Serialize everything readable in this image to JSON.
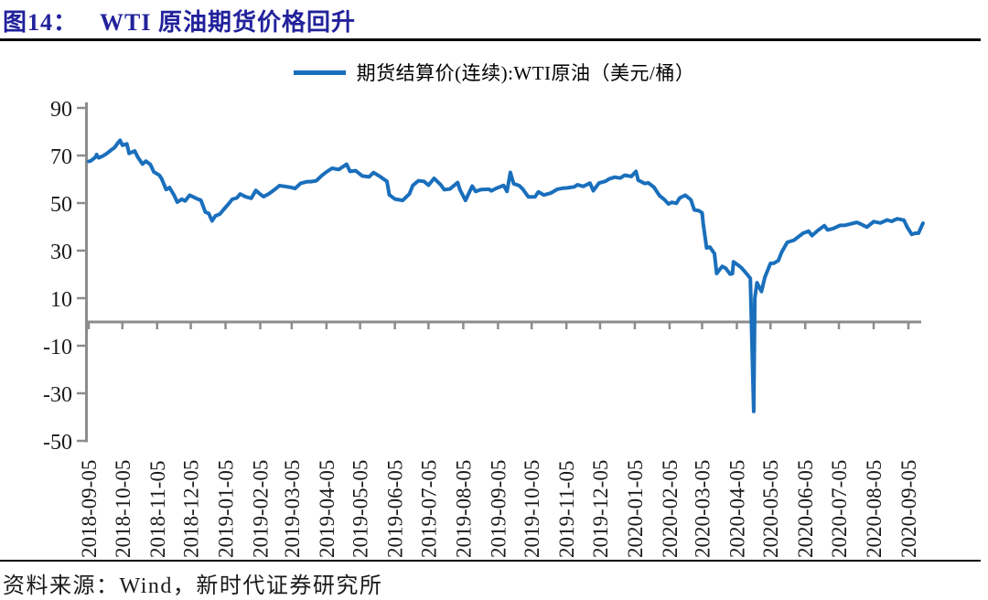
{
  "header": {
    "figure_label": "图14：",
    "title": "WTI 原油期货价格回升",
    "title_color": "#22229C"
  },
  "footer": {
    "source": "资料来源：Wind，新时代证券研究所"
  },
  "chart_data": {
    "type": "line",
    "title": "WTI 原油期货价格回升",
    "legend": [
      "期货结算价(连续):WTI原油（美元/桶）"
    ],
    "legend_position": "top-center",
    "grid": false,
    "ylabel": "美元/桶",
    "ylim": [
      -50,
      90
    ],
    "yticks": [
      90,
      70,
      50,
      30,
      10,
      -10,
      -30,
      -50
    ],
    "axis_color": "#8C8C8C",
    "tick_label_color": "#1a1a1a",
    "x_range": [
      "2018-09-05",
      "2020-09-05"
    ],
    "xtick_labels": [
      "2018-09-05",
      "2018-10-05",
      "2018-11-05",
      "2018-12-05",
      "2019-01-05",
      "2019-02-05",
      "2019-03-05",
      "2019-04-05",
      "2019-05-05",
      "2019-06-05",
      "2019-07-05",
      "2019-08-05",
      "2019-09-05",
      "2019-10-05",
      "2019-11-05",
      "2019-12-05",
      "2020-01-05",
      "2020-02-05",
      "2020-03-05",
      "2020-04-05",
      "2020-05-05",
      "2020-06-05",
      "2020-07-05",
      "2020-08-05",
      "2020-09-05"
    ],
    "series": [
      {
        "name": "期货结算价(连续):WTI原油（美元/桶）",
        "color": "#1A6FBC",
        "unit": "美元/桶",
        "points": [
          [
            "2018-09-05",
            67.5
          ],
          [
            "2018-09-07",
            67.8
          ],
          [
            "2018-09-11",
            69.3
          ],
          [
            "2018-09-12",
            70.4
          ],
          [
            "2018-09-14",
            69.0
          ],
          [
            "2018-09-18",
            69.9
          ],
          [
            "2018-09-21",
            70.8
          ],
          [
            "2018-09-25",
            72.3
          ],
          [
            "2018-09-28",
            73.3
          ],
          [
            "2018-10-01",
            75.3
          ],
          [
            "2018-10-03",
            76.4
          ],
          [
            "2018-10-05",
            74.3
          ],
          [
            "2018-10-09",
            74.9
          ],
          [
            "2018-10-11",
            70.9
          ],
          [
            "2018-10-16",
            71.9
          ],
          [
            "2018-10-19",
            69.1
          ],
          [
            "2018-10-23",
            66.4
          ],
          [
            "2018-10-26",
            67.6
          ],
          [
            "2018-10-30",
            66.2
          ],
          [
            "2018-11-02",
            63.1
          ],
          [
            "2018-11-07",
            61.7
          ],
          [
            "2018-11-09",
            60.2
          ],
          [
            "2018-11-13",
            55.7
          ],
          [
            "2018-11-16",
            56.5
          ],
          [
            "2018-11-20",
            53.4
          ],
          [
            "2018-11-23",
            50.4
          ],
          [
            "2018-11-27",
            51.6
          ],
          [
            "2018-11-30",
            50.9
          ],
          [
            "2018-12-04",
            53.3
          ],
          [
            "2018-12-07",
            52.6
          ],
          [
            "2018-12-11",
            51.7
          ],
          [
            "2018-12-14",
            51.2
          ],
          [
            "2018-12-18",
            46.2
          ],
          [
            "2018-12-21",
            45.6
          ],
          [
            "2018-12-24",
            42.5
          ],
          [
            "2018-12-27",
            44.6
          ],
          [
            "2018-12-31",
            45.4
          ],
          [
            "2019-01-03",
            47.1
          ],
          [
            "2019-01-08",
            49.8
          ],
          [
            "2019-01-11",
            51.6
          ],
          [
            "2019-01-15",
            52.1
          ],
          [
            "2019-01-18",
            53.8
          ],
          [
            "2019-01-23",
            52.6
          ],
          [
            "2019-01-28",
            52.0
          ],
          [
            "2019-02-01",
            55.3
          ],
          [
            "2019-02-05",
            53.7
          ],
          [
            "2019-02-08",
            52.7
          ],
          [
            "2019-02-13",
            54.0
          ],
          [
            "2019-02-19",
            56.1
          ],
          [
            "2019-02-22",
            57.3
          ],
          [
            "2019-02-27",
            57.0
          ],
          [
            "2019-03-04",
            56.6
          ],
          [
            "2019-03-08",
            56.1
          ],
          [
            "2019-03-13",
            58.3
          ],
          [
            "2019-03-19",
            59.0
          ],
          [
            "2019-03-22",
            59.0
          ],
          [
            "2019-03-27",
            59.4
          ],
          [
            "2019-04-01",
            61.6
          ],
          [
            "2019-04-05",
            63.1
          ],
          [
            "2019-04-10",
            64.6
          ],
          [
            "2019-04-16",
            64.1
          ],
          [
            "2019-04-23",
            66.3
          ],
          [
            "2019-04-26",
            63.3
          ],
          [
            "2019-05-01",
            63.6
          ],
          [
            "2019-05-07",
            61.4
          ],
          [
            "2019-05-13",
            61.0
          ],
          [
            "2019-05-17",
            62.8
          ],
          [
            "2019-05-22",
            61.4
          ],
          [
            "2019-05-29",
            59.1
          ],
          [
            "2019-05-31",
            53.5
          ],
          [
            "2019-06-05",
            51.7
          ],
          [
            "2019-06-12",
            51.1
          ],
          [
            "2019-06-18",
            53.9
          ],
          [
            "2019-06-21",
            57.4
          ],
          [
            "2019-06-26",
            59.4
          ],
          [
            "2019-07-01",
            59.1
          ],
          [
            "2019-07-05",
            57.5
          ],
          [
            "2019-07-10",
            60.4
          ],
          [
            "2019-07-16",
            57.6
          ],
          [
            "2019-07-19",
            55.6
          ],
          [
            "2019-07-24",
            55.9
          ],
          [
            "2019-07-31",
            58.6
          ],
          [
            "2019-08-02",
            55.7
          ],
          [
            "2019-08-07",
            51.1
          ],
          [
            "2019-08-13",
            57.1
          ],
          [
            "2019-08-16",
            54.9
          ],
          [
            "2019-08-21",
            55.7
          ],
          [
            "2019-08-28",
            55.8
          ],
          [
            "2019-08-30",
            55.1
          ],
          [
            "2019-09-04",
            56.3
          ],
          [
            "2019-09-10",
            57.4
          ],
          [
            "2019-09-13",
            54.9
          ],
          [
            "2019-09-16",
            62.9
          ],
          [
            "2019-09-19",
            58.1
          ],
          [
            "2019-09-24",
            57.3
          ],
          [
            "2019-09-27",
            55.9
          ],
          [
            "2019-10-02",
            52.6
          ],
          [
            "2019-10-08",
            52.6
          ],
          [
            "2019-10-11",
            54.7
          ],
          [
            "2019-10-16",
            53.4
          ],
          [
            "2019-10-22",
            54.2
          ],
          [
            "2019-10-28",
            55.8
          ],
          [
            "2019-11-01",
            56.2
          ],
          [
            "2019-11-06",
            56.4
          ],
          [
            "2019-11-12",
            56.8
          ],
          [
            "2019-11-15",
            57.7
          ],
          [
            "2019-11-20",
            57.0
          ],
          [
            "2019-11-26",
            58.4
          ],
          [
            "2019-11-29",
            55.2
          ],
          [
            "2019-12-04",
            58.4
          ],
          [
            "2019-12-10",
            59.2
          ],
          [
            "2019-12-13",
            60.1
          ],
          [
            "2019-12-18",
            60.9
          ],
          [
            "2019-12-23",
            60.5
          ],
          [
            "2019-12-27",
            61.7
          ],
          [
            "2020-01-02",
            61.2
          ],
          [
            "2020-01-06",
            63.3
          ],
          [
            "2020-01-08",
            59.6
          ],
          [
            "2020-01-14",
            58.2
          ],
          [
            "2020-01-17",
            58.5
          ],
          [
            "2020-01-22",
            56.7
          ],
          [
            "2020-01-27",
            53.1
          ],
          [
            "2020-01-31",
            51.6
          ],
          [
            "2020-02-04",
            49.6
          ],
          [
            "2020-02-07",
            50.3
          ],
          [
            "2020-02-11",
            49.9
          ],
          [
            "2020-02-14",
            52.1
          ],
          [
            "2020-02-19",
            53.3
          ],
          [
            "2020-02-24",
            51.4
          ],
          [
            "2020-02-27",
            47.1
          ],
          [
            "2020-03-02",
            46.8
          ],
          [
            "2020-03-05",
            45.9
          ],
          [
            "2020-03-06",
            41.3
          ],
          [
            "2020-03-09",
            31.1
          ],
          [
            "2020-03-12",
            31.5
          ],
          [
            "2020-03-16",
            28.7
          ],
          [
            "2020-03-18",
            20.4
          ],
          [
            "2020-03-23",
            23.4
          ],
          [
            "2020-03-26",
            22.6
          ],
          [
            "2020-03-30",
            20.1
          ],
          [
            "2020-04-01",
            20.3
          ],
          [
            "2020-04-02",
            25.3
          ],
          [
            "2020-04-07",
            23.6
          ],
          [
            "2020-04-09",
            22.8
          ],
          [
            "2020-04-14",
            20.1
          ],
          [
            "2020-04-17",
            18.3
          ],
          [
            "2020-04-20",
            -37.6
          ],
          [
            "2020-04-21",
            10.0
          ],
          [
            "2020-04-23",
            16.5
          ],
          [
            "2020-04-27",
            12.8
          ],
          [
            "2020-04-30",
            18.8
          ],
          [
            "2020-05-05",
            24.6
          ],
          [
            "2020-05-08",
            24.7
          ],
          [
            "2020-05-12",
            25.8
          ],
          [
            "2020-05-15",
            29.4
          ],
          [
            "2020-05-20",
            33.5
          ],
          [
            "2020-05-26",
            34.4
          ],
          [
            "2020-05-29",
            35.5
          ],
          [
            "2020-06-03",
            37.3
          ],
          [
            "2020-06-08",
            38.2
          ],
          [
            "2020-06-11",
            36.3
          ],
          [
            "2020-06-16",
            38.4
          ],
          [
            "2020-06-22",
            40.5
          ],
          [
            "2020-06-25",
            38.7
          ],
          [
            "2020-06-30",
            39.3
          ],
          [
            "2020-07-06",
            40.6
          ],
          [
            "2020-07-10",
            40.6
          ],
          [
            "2020-07-15",
            41.2
          ],
          [
            "2020-07-21",
            41.9
          ],
          [
            "2020-07-24",
            41.3
          ],
          [
            "2020-07-30",
            39.9
          ],
          [
            "2020-08-05",
            42.2
          ],
          [
            "2020-08-11",
            41.6
          ],
          [
            "2020-08-17",
            42.9
          ],
          [
            "2020-08-21",
            42.3
          ],
          [
            "2020-08-26",
            43.4
          ],
          [
            "2020-09-01",
            42.8
          ],
          [
            "2020-09-04",
            39.8
          ],
          [
            "2020-09-08",
            36.8
          ],
          [
            "2020-09-11",
            37.3
          ],
          [
            "2020-09-14",
            37.3
          ],
          [
            "2020-09-18",
            41.5
          ]
        ]
      }
    ]
  }
}
